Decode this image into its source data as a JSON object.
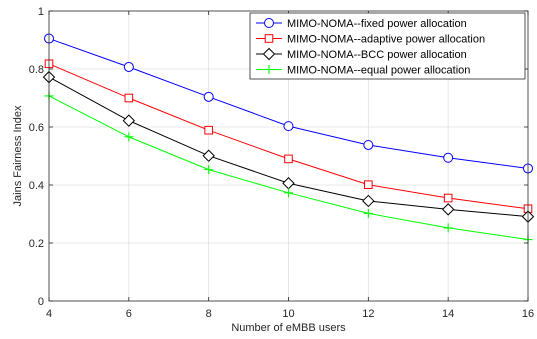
{
  "chart_data": {
    "type": "line",
    "title": "",
    "xlabel": "Number of eMBB users",
    "ylabel": "Jains Fairness Index",
    "xlim": [
      4,
      16
    ],
    "ylim": [
      0,
      1
    ],
    "x_ticks": [
      4,
      6,
      8,
      10,
      12,
      14,
      16
    ],
    "y_ticks": [
      0,
      0.2,
      0.4,
      0.6,
      0.8,
      1
    ],
    "y_tick_labels": [
      "0",
      "0.2",
      "0.4",
      "0.6",
      "0.8",
      "1"
    ],
    "grid": true,
    "legend_position": "top-right",
    "x": [
      4,
      6,
      8,
      10,
      12,
      14,
      16
    ],
    "series": [
      {
        "name": "MIMO-NOMA--fixed power allocation",
        "color": "#0000ff",
        "marker": "circle",
        "values": [
          0.905,
          0.807,
          0.704,
          0.603,
          0.538,
          0.494,
          0.457
        ]
      },
      {
        "name": "MIMO-NOMA--adaptive power allocation",
        "color": "#ff0000",
        "marker": "square",
        "values": [
          0.818,
          0.7,
          0.589,
          0.49,
          0.401,
          0.355,
          0.318
        ]
      },
      {
        "name": "MIMO-NOMA--BCC power allocation",
        "color": "#000000",
        "marker": "diamond",
        "values": [
          0.772,
          0.622,
          0.501,
          0.406,
          0.345,
          0.316,
          0.291
        ]
      },
      {
        "name": "MIMO-NOMA--equal power allocation",
        "color": "#00ff00",
        "marker": "plus",
        "values": [
          0.707,
          0.566,
          0.453,
          0.373,
          0.302,
          0.252,
          0.212
        ]
      }
    ]
  }
}
